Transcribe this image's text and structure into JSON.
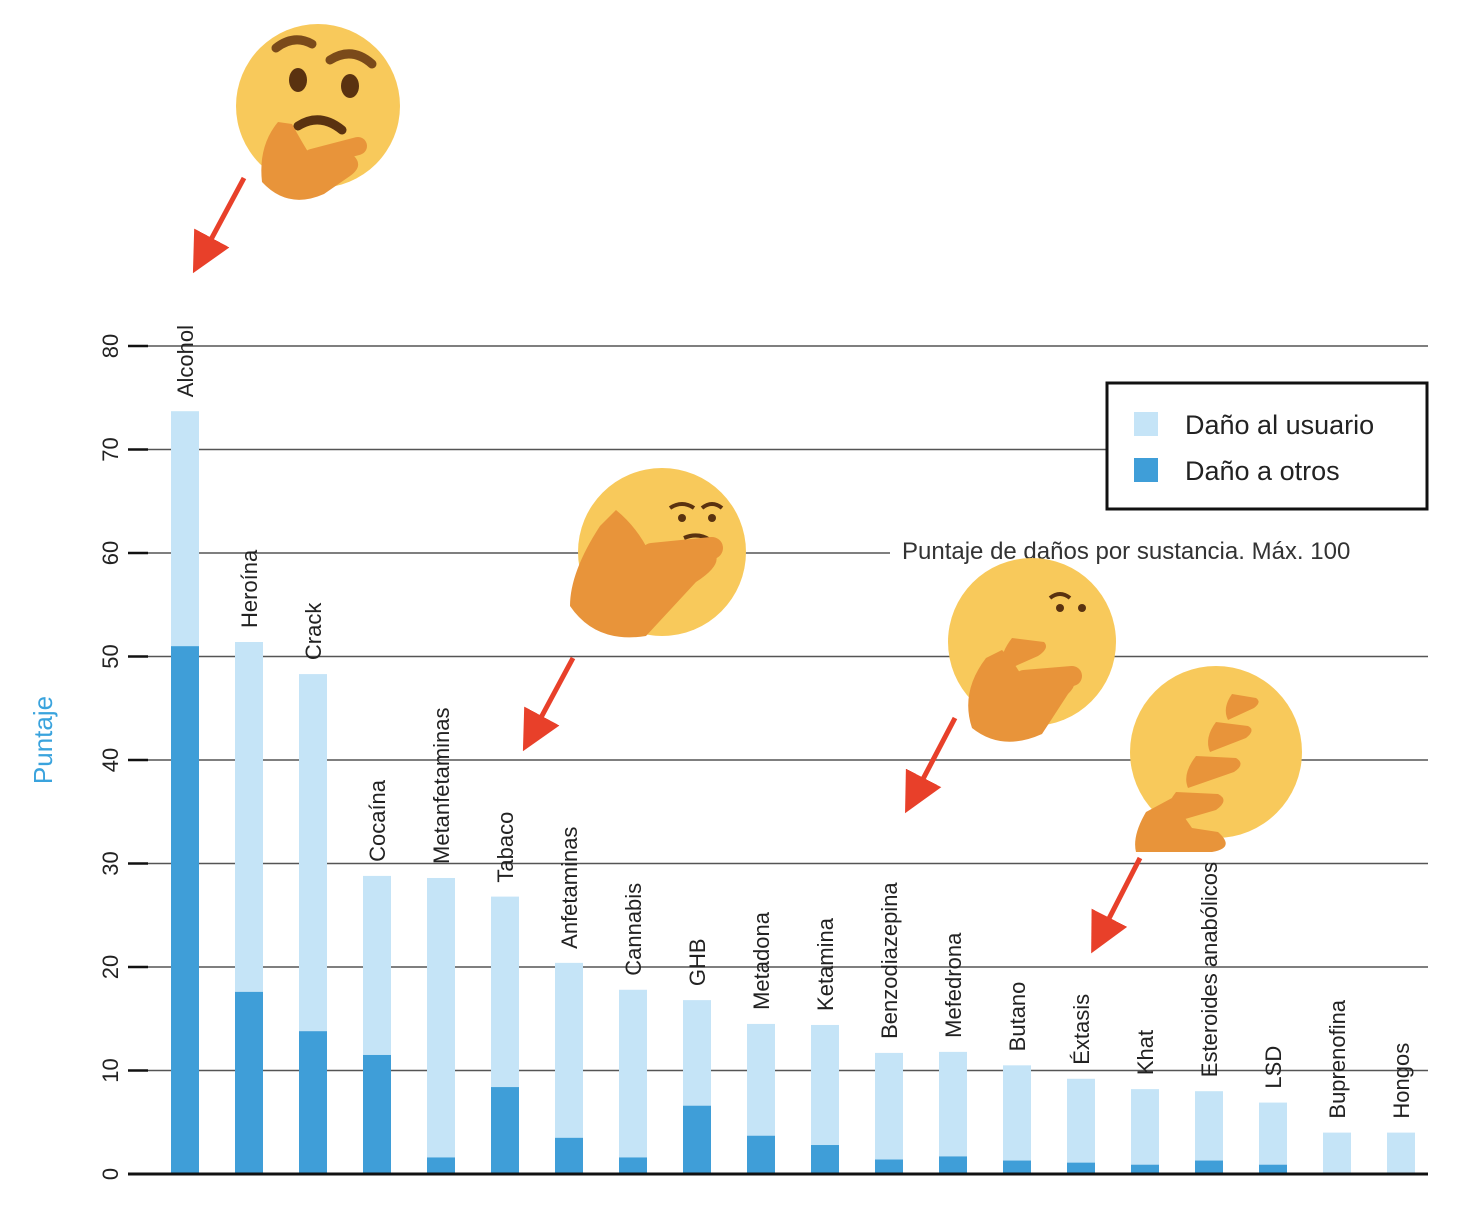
{
  "chart_data": {
    "type": "bar",
    "stacked": true,
    "title": "Puntaje de daños por sustancia. Máx. 100",
    "ylabel": "Puntaje",
    "ylim": [
      0,
      80
    ],
    "yticks": [
      "0",
      "10",
      "20",
      "30",
      "40",
      "50",
      "60",
      "70",
      "80"
    ],
    "categories": [
      "Alcohol",
      "Heroína",
      "Crack",
      "Cocaína",
      "Metanfetaminas",
      "Tabaco",
      "Anfetaminas",
      "Cannabis",
      "GHB",
      "Metadona",
      "Ketamina",
      "Benzodiazepina",
      "Mefedrona",
      "Butano",
      "Éxtasis",
      "Khat",
      "Esteroides anabólicos",
      "LSD",
      "Buprenofina",
      "Hongos"
    ],
    "series": [
      {
        "name": "Daño a otros",
        "color": "#3f9ed8",
        "values": [
          51,
          17.6,
          13.8,
          11.5,
          1.6,
          8.4,
          3.5,
          1.6,
          6.6,
          3.7,
          2.8,
          1.4,
          1.7,
          1.3,
          1.1,
          0.9,
          1.3,
          0.9,
          0,
          0
        ]
      },
      {
        "name": "Daño al usuario",
        "color": "#c5e4f7",
        "values": [
          22.7,
          33.8,
          34.5,
          17.3,
          27.0,
          18.4,
          16.9,
          16.2,
          10.2,
          10.8,
          11.6,
          10.3,
          10.1,
          9.2,
          8.1,
          7.3,
          6.7,
          6.0,
          4.0,
          4.0
        ]
      }
    ],
    "legend": {
      "placement": "top-right",
      "entries": [
        "Daño al usuario",
        "Daño a otros"
      ]
    },
    "annotations": [
      "thinking-face-emoji",
      "thinking-face-emoji",
      "thinking-face-emoji",
      "thinking-face-emoji"
    ]
  }
}
